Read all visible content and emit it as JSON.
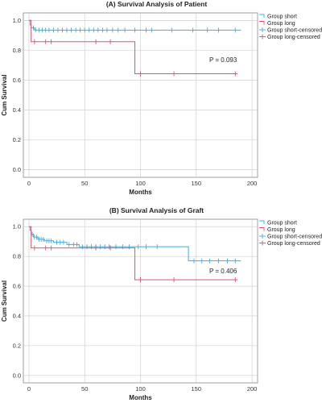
{
  "chart_data": [
    {
      "type": "line",
      "subtype": "kaplan-meier",
      "title": "(A) Survival Analysis of Patient",
      "xlabel": "Months",
      "ylabel": "Cum Survival",
      "xlim": [
        -5,
        205
      ],
      "ylim": [
        -0.05,
        1.05
      ],
      "xticks": [
        0,
        50,
        100,
        150,
        200
      ],
      "yticks": [
        0.0,
        0.2,
        0.4,
        0.6,
        0.8,
        1.0
      ],
      "grid": true,
      "legend_position": "top-right",
      "legend": [
        "Group short",
        "Group long",
        "Group short-censored",
        "Group long-censored"
      ],
      "annotation": "P = 0.093",
      "series": [
        {
          "name": "Group short",
          "color": "#4aa8d8",
          "steps": [
            [
              0,
              1.0
            ],
            [
              1,
              0.97
            ],
            [
              2,
              0.95
            ],
            [
              5,
              0.935
            ],
            [
              190,
              0.935
            ]
          ],
          "censored": [
            [
              4,
              0.95
            ],
            [
              6,
              0.935
            ],
            [
              9,
              0.935
            ],
            [
              12,
              0.935
            ],
            [
              15,
              0.935
            ],
            [
              18,
              0.935
            ],
            [
              22,
              0.935
            ],
            [
              26,
              0.935
            ],
            [
              30,
              0.935
            ],
            [
              34,
              0.935
            ],
            [
              38,
              0.935
            ],
            [
              42,
              0.935
            ],
            [
              46,
              0.935
            ],
            [
              50,
              0.935
            ],
            [
              54,
              0.935
            ],
            [
              58,
              0.935
            ],
            [
              62,
              0.935
            ],
            [
              66,
              0.935
            ],
            [
              70,
              0.935
            ],
            [
              75,
              0.935
            ],
            [
              80,
              0.935
            ],
            [
              86,
              0.935
            ],
            [
              95,
              0.935
            ],
            [
              105,
              0.935
            ],
            [
              110,
              0.935
            ],
            [
              128,
              0.935
            ],
            [
              147,
              0.935
            ],
            [
              160,
              0.935
            ],
            [
              170,
              0.935
            ],
            [
              185,
              0.935
            ]
          ]
        },
        {
          "name": "Group long",
          "color": "#e0506e",
          "steps": [
            [
              0,
              1.0
            ],
            [
              2,
              0.857
            ],
            [
              95,
              0.643
            ],
            [
              187,
              0.643
            ]
          ],
          "censored": [
            [
              5,
              0.857
            ],
            [
              15,
              0.857
            ],
            [
              20,
              0.857
            ],
            [
              60,
              0.857
            ],
            [
              73,
              0.857
            ],
            [
              100,
              0.643
            ],
            [
              130,
              0.643
            ],
            [
              185,
              0.643
            ]
          ]
        }
      ]
    },
    {
      "type": "line",
      "subtype": "kaplan-meier",
      "title": "(B) Survival Analysis of Graft",
      "xlabel": "Months",
      "ylabel": "Cum Survival",
      "xlim": [
        -5,
        205
      ],
      "ylim": [
        -0.05,
        1.05
      ],
      "xticks": [
        0,
        50,
        100,
        150,
        200
      ],
      "yticks": [
        0.0,
        0.2,
        0.4,
        0.6,
        0.8,
        1.0
      ],
      "grid": true,
      "legend_position": "top-right",
      "legend": [
        "Group short",
        "Group long",
        "Group short-censored",
        "Group long-censored"
      ],
      "annotation": "P = 0.406",
      "series": [
        {
          "name": "Group short",
          "color": "#4aa8d8",
          "steps": [
            [
              0,
              1.0
            ],
            [
              1,
              0.975
            ],
            [
              2,
              0.95
            ],
            [
              4,
              0.93
            ],
            [
              8,
              0.915
            ],
            [
              14,
              0.905
            ],
            [
              22,
              0.895
            ],
            [
              34,
              0.88
            ],
            [
              45,
              0.865
            ],
            [
              143,
              0.77
            ],
            [
              190,
              0.77
            ]
          ],
          "censored": [
            [
              3,
              0.95
            ],
            [
              5,
              0.93
            ],
            [
              7,
              0.93
            ],
            [
              9,
              0.915
            ],
            [
              11,
              0.915
            ],
            [
              13,
              0.915
            ],
            [
              16,
              0.905
            ],
            [
              18,
              0.905
            ],
            [
              20,
              0.905
            ],
            [
              25,
              0.895
            ],
            [
              28,
              0.895
            ],
            [
              31,
              0.895
            ],
            [
              36,
              0.88
            ],
            [
              40,
              0.88
            ],
            [
              43,
              0.88
            ],
            [
              48,
              0.865
            ],
            [
              52,
              0.865
            ],
            [
              56,
              0.865
            ],
            [
              60,
              0.865
            ],
            [
              64,
              0.865
            ],
            [
              68,
              0.865
            ],
            [
              72,
              0.865
            ],
            [
              78,
              0.865
            ],
            [
              84,
              0.865
            ],
            [
              90,
              0.865
            ],
            [
              98,
              0.865
            ],
            [
              105,
              0.865
            ],
            [
              115,
              0.865
            ],
            [
              148,
              0.77
            ],
            [
              155,
              0.77
            ],
            [
              162,
              0.77
            ],
            [
              170,
              0.77
            ],
            [
              178,
              0.77
            ],
            [
              185,
              0.77
            ]
          ]
        },
        {
          "name": "Group long",
          "color": "#e0506e",
          "steps": [
            [
              0,
              1.0
            ],
            [
              2,
              0.857
            ],
            [
              95,
              0.643
            ],
            [
              187,
              0.643
            ]
          ],
          "censored": [
            [
              5,
              0.857
            ],
            [
              15,
              0.857
            ],
            [
              20,
              0.857
            ],
            [
              60,
              0.857
            ],
            [
              73,
              0.857
            ],
            [
              100,
              0.643
            ],
            [
              130,
              0.643
            ],
            [
              185,
              0.643
            ]
          ]
        }
      ]
    }
  ]
}
